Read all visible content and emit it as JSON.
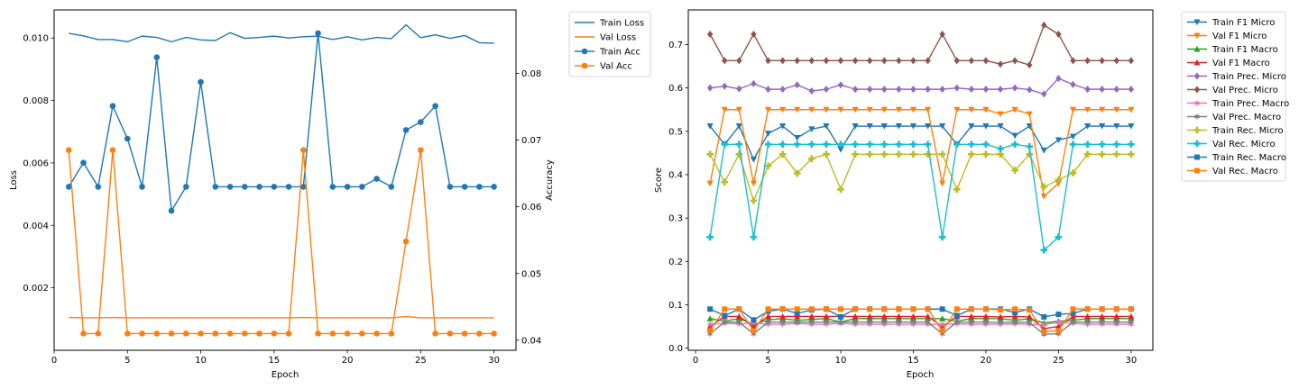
{
  "chart_data": [
    {
      "type": "line",
      "title": "",
      "xlabel": "Epoch",
      "ylabel": "Loss",
      "y2label": "Accuracy",
      "xlim": [
        0,
        31.5
      ],
      "ylim": [
        0.0,
        0.0109
      ],
      "y2lim": [
        0.0385,
        0.0895
      ],
      "x_ticks": [
        0,
        5,
        10,
        15,
        20,
        25,
        30
      ],
      "y_ticks": [
        0.002,
        0.004,
        0.006,
        0.008,
        0.01
      ],
      "y_tick_labels": [
        "0.002",
        "0.004",
        "0.006",
        "0.008",
        "0.010"
      ],
      "y2_ticks": [
        0.04,
        0.05,
        0.06,
        0.07,
        0.08
      ],
      "y2_tick_labels": [
        "0.04",
        "0.05",
        "0.06",
        "0.07",
        "0.08"
      ],
      "legend_position": "outside-top-right",
      "x": [
        1,
        2,
        3,
        4,
        5,
        6,
        7,
        8,
        9,
        10,
        11,
        12,
        13,
        14,
        15,
        16,
        17,
        18,
        19,
        20,
        21,
        22,
        23,
        24,
        25,
        26,
        27,
        28,
        29,
        30
      ],
      "series": [
        {
          "name": "Train Loss",
          "axis": "left",
          "color": "#1f77b4",
          "marker": "none",
          "values": [
            0.01015,
            0.01007,
            0.00995,
            0.00995,
            0.00988,
            0.01006,
            0.01002,
            0.00988,
            0.01002,
            0.00994,
            0.00992,
            0.01017,
            0.00999,
            0.01002,
            0.01006,
            0.01,
            0.01004,
            0.01006,
            0.00995,
            0.01004,
            0.00994,
            0.01002,
            0.00998,
            0.01042,
            0.01001,
            0.0101,
            0.00999,
            0.01008,
            0.00985,
            0.00983
          ]
        },
        {
          "name": "Val Loss",
          "axis": "left",
          "color": "#ff7f0e",
          "marker": "none",
          "values": [
            0.00105,
            0.00104,
            0.00104,
            0.00105,
            0.00104,
            0.00104,
            0.00104,
            0.00104,
            0.00104,
            0.00104,
            0.00104,
            0.00104,
            0.00104,
            0.00104,
            0.00104,
            0.00104,
            0.00105,
            0.00104,
            0.00104,
            0.00104,
            0.00104,
            0.00104,
            0.00104,
            0.00108,
            0.00104,
            0.00104,
            0.00104,
            0.00104,
            0.00104,
            0.00104
          ]
        },
        {
          "name": "Train Acc",
          "axis": "right",
          "color": "#1f77b4",
          "marker": "circle",
          "values": [
            0.063,
            0.0666,
            0.063,
            0.0751,
            0.0702,
            0.063,
            0.0824,
            0.0594,
            0.063,
            0.0787,
            0.063,
            0.063,
            0.063,
            0.063,
            0.063,
            0.063,
            0.063,
            0.086,
            0.063,
            0.063,
            0.063,
            0.0642,
            0.063,
            0.0715,
            0.0727,
            0.0751,
            0.063,
            0.063,
            0.063,
            0.063
          ]
        },
        {
          "name": "Val Acc",
          "axis": "right",
          "color": "#ff7f0e",
          "marker": "circle",
          "values": [
            0.0685,
            0.041,
            0.041,
            0.0685,
            0.041,
            0.041,
            0.041,
            0.041,
            0.041,
            0.041,
            0.041,
            0.041,
            0.041,
            0.041,
            0.041,
            0.041,
            0.0685,
            0.041,
            0.041,
            0.041,
            0.041,
            0.041,
            0.041,
            0.0548,
            0.0685,
            0.041,
            0.041,
            0.041,
            0.041,
            0.041
          ]
        }
      ]
    },
    {
      "type": "line",
      "title": "",
      "xlabel": "Epoch",
      "ylabel": "Score",
      "xlim": [
        -0.5,
        31.5
      ],
      "ylim": [
        -0.005,
        0.78
      ],
      "x_ticks": [
        0,
        5,
        10,
        15,
        20,
        25,
        30
      ],
      "y_ticks": [
        0.0,
        0.1,
        0.2,
        0.3,
        0.4,
        0.5,
        0.6,
        0.7
      ],
      "y_tick_labels": [
        "0.0",
        "0.1",
        "0.2",
        "0.3",
        "0.4",
        "0.5",
        "0.6",
        "0.7"
      ],
      "legend_position": "outside-top-right",
      "x": [
        1,
        2,
        3,
        4,
        5,
        6,
        7,
        8,
        9,
        10,
        11,
        12,
        13,
        14,
        15,
        16,
        17,
        18,
        19,
        20,
        21,
        22,
        23,
        24,
        25,
        26,
        27,
        28,
        29,
        30
      ],
      "series": [
        {
          "name": "Train F1 Micro",
          "color": "#1f77b4",
          "marker": "triangle-down",
          "values": [
            0.512,
            0.47,
            0.512,
            0.435,
            0.495,
            0.512,
            0.485,
            0.505,
            0.512,
            0.458,
            0.512,
            0.512,
            0.512,
            0.512,
            0.512,
            0.512,
            0.512,
            0.47,
            0.512,
            0.512,
            0.512,
            0.49,
            0.512,
            0.456,
            0.48,
            0.488,
            0.512,
            0.512,
            0.512,
            0.512
          ]
        },
        {
          "name": "Val F1 Micro",
          "color": "#ff7f0e",
          "marker": "triangle-down",
          "values": [
            0.38,
            0.55,
            0.55,
            0.38,
            0.55,
            0.55,
            0.55,
            0.55,
            0.55,
            0.55,
            0.55,
            0.55,
            0.55,
            0.55,
            0.55,
            0.55,
            0.38,
            0.55,
            0.55,
            0.55,
            0.54,
            0.55,
            0.54,
            0.35,
            0.38,
            0.55,
            0.55,
            0.55,
            0.55,
            0.55
          ]
        },
        {
          "name": "Train F1 Macro",
          "color": "#2ca02c",
          "marker": "triangle-up",
          "values": [
            0.068,
            0.062,
            0.068,
            0.055,
            0.065,
            0.068,
            0.064,
            0.066,
            0.068,
            0.06,
            0.068,
            0.068,
            0.068,
            0.068,
            0.068,
            0.068,
            0.068,
            0.062,
            0.068,
            0.068,
            0.068,
            0.064,
            0.068,
            0.058,
            0.062,
            0.064,
            0.068,
            0.068,
            0.068,
            0.068
          ]
        },
        {
          "name": "Val F1 Macro",
          "color": "#d62728",
          "marker": "triangle-up",
          "values": [
            0.05,
            0.073,
            0.073,
            0.05,
            0.073,
            0.073,
            0.073,
            0.073,
            0.073,
            0.073,
            0.073,
            0.073,
            0.073,
            0.073,
            0.073,
            0.073,
            0.05,
            0.073,
            0.073,
            0.073,
            0.072,
            0.073,
            0.072,
            0.045,
            0.05,
            0.073,
            0.073,
            0.073,
            0.073,
            0.073
          ]
        },
        {
          "name": "Train Prec. Micro",
          "color": "#9467bd",
          "marker": "diamond",
          "values": [
            0.6,
            0.604,
            0.598,
            0.61,
            0.597,
            0.597,
            0.607,
            0.593,
            0.597,
            0.607,
            0.597,
            0.597,
            0.597,
            0.597,
            0.597,
            0.597,
            0.597,
            0.6,
            0.597,
            0.597,
            0.597,
            0.6,
            0.596,
            0.586,
            0.622,
            0.608,
            0.597,
            0.597,
            0.597,
            0.597
          ]
        },
        {
          "name": "Val Prec. Micro",
          "color": "#8c564b",
          "marker": "diamond",
          "values": [
            0.724,
            0.663,
            0.663,
            0.724,
            0.663,
            0.663,
            0.663,
            0.663,
            0.663,
            0.663,
            0.663,
            0.663,
            0.663,
            0.663,
            0.663,
            0.663,
            0.724,
            0.663,
            0.663,
            0.663,
            0.655,
            0.663,
            0.653,
            0.745,
            0.724,
            0.663,
            0.663,
            0.663,
            0.663,
            0.663
          ]
        },
        {
          "name": "Train Prec. Macro",
          "color": "#e377c2",
          "marker": "star",
          "values": [
            0.055,
            0.057,
            0.056,
            0.058,
            0.055,
            0.055,
            0.057,
            0.055,
            0.055,
            0.057,
            0.055,
            0.055,
            0.055,
            0.055,
            0.055,
            0.055,
            0.055,
            0.056,
            0.055,
            0.055,
            0.055,
            0.056,
            0.055,
            0.054,
            0.06,
            0.057,
            0.055,
            0.055,
            0.055,
            0.055
          ]
        },
        {
          "name": "Val Prec. Macro",
          "color": "#7f7f7f",
          "marker": "star",
          "values": [
            0.033,
            0.06,
            0.06,
            0.033,
            0.06,
            0.06,
            0.06,
            0.06,
            0.06,
            0.06,
            0.06,
            0.06,
            0.06,
            0.06,
            0.06,
            0.06,
            0.033,
            0.06,
            0.06,
            0.06,
            0.059,
            0.06,
            0.059,
            0.032,
            0.033,
            0.06,
            0.06,
            0.06,
            0.06,
            0.06
          ]
        },
        {
          "name": "Train Rec. Micro",
          "color": "#bcbd22",
          "marker": "plus",
          "values": [
            0.447,
            0.383,
            0.447,
            0.34,
            0.42,
            0.447,
            0.403,
            0.437,
            0.447,
            0.366,
            0.447,
            0.447,
            0.447,
            0.447,
            0.447,
            0.447,
            0.447,
            0.366,
            0.447,
            0.447,
            0.447,
            0.41,
            0.447,
            0.372,
            0.388,
            0.404,
            0.447,
            0.447,
            0.447,
            0.447
          ]
        },
        {
          "name": "Val Rec. Micro",
          "color": "#17becf",
          "marker": "plus",
          "values": [
            0.256,
            0.47,
            0.47,
            0.256,
            0.47,
            0.47,
            0.47,
            0.47,
            0.47,
            0.47,
            0.47,
            0.47,
            0.47,
            0.47,
            0.47,
            0.47,
            0.256,
            0.47,
            0.47,
            0.47,
            0.46,
            0.47,
            0.465,
            0.226,
            0.256,
            0.47,
            0.47,
            0.47,
            0.47,
            0.47
          ]
        },
        {
          "name": "Train Rec. Macro",
          "color": "#1f77b4",
          "marker": "square",
          "values": [
            0.09,
            0.075,
            0.09,
            0.065,
            0.085,
            0.09,
            0.08,
            0.088,
            0.09,
            0.072,
            0.09,
            0.09,
            0.09,
            0.09,
            0.09,
            0.09,
            0.09,
            0.075,
            0.09,
            0.09,
            0.09,
            0.082,
            0.09,
            0.072,
            0.078,
            0.08,
            0.09,
            0.09,
            0.09,
            0.09
          ]
        },
        {
          "name": "Val Rec. Macro",
          "color": "#ff7f0e",
          "marker": "square",
          "values": [
            0.04,
            0.09,
            0.09,
            0.04,
            0.09,
            0.09,
            0.09,
            0.09,
            0.09,
            0.09,
            0.09,
            0.09,
            0.09,
            0.09,
            0.09,
            0.09,
            0.04,
            0.09,
            0.09,
            0.09,
            0.088,
            0.09,
            0.088,
            0.038,
            0.04,
            0.09,
            0.09,
            0.09,
            0.09,
            0.09
          ]
        }
      ]
    }
  ]
}
